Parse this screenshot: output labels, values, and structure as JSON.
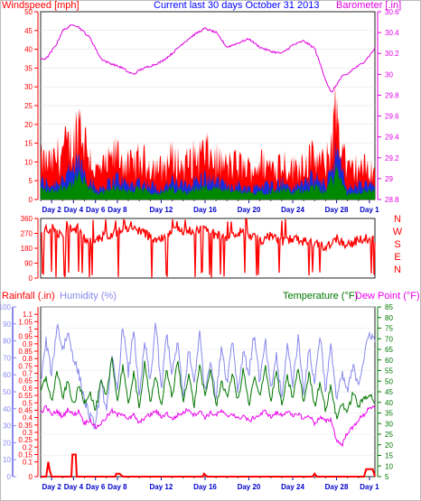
{
  "colors": {
    "wind": "#ff0000",
    "gust": "#ff0000",
    "avgwind": "#1a2bd9",
    "wind_base": "#008800",
    "barometer": "#e000e0",
    "direction": "#ff0000",
    "rain": "#ff0000",
    "humidity": "#8888ee",
    "temperature": "#007700",
    "dewpoint": "#ee00ee",
    "day_tick": "#0000cc"
  },
  "chart_data": [
    {
      "type": "area",
      "title": "Current last 30 days October 31 2013",
      "ylabel_left": "Windspeed [mph]",
      "ylabel_right": "Barometer [.in]",
      "ylim_left": [
        0,
        50
      ],
      "ylim_right": [
        28.8,
        30.6
      ],
      "yticks_left": [
        "0",
        "5",
        "10",
        "15",
        "20",
        "25",
        "30",
        "35",
        "40",
        "45",
        "50"
      ],
      "yticks_right": [
        "28.8",
        "29",
        "29.2",
        "29.4",
        "29.6",
        "29.8",
        "30",
        "30.2",
        "30.4",
        "30.6"
      ],
      "xtick_labels": [
        "Day 2",
        "Day 4",
        "Day 6",
        "Day 8",
        "Day 12",
        "Day 16",
        "Day 20",
        "Day 24",
        "Day 28",
        "Day 1"
      ],
      "xtick_days": [
        2,
        4,
        6,
        8,
        12,
        16,
        20,
        24,
        28,
        31
      ],
      "x_range_days": [
        1,
        31.5
      ],
      "series": [
        {
          "name": "Windspeed",
          "kind": "gust_max",
          "days": [
            1,
            2,
            3,
            4,
            4.5,
            5,
            6,
            7,
            8,
            9,
            10,
            11,
            12,
            13,
            14,
            15,
            16,
            17,
            18,
            19,
            20,
            21,
            22,
            23,
            24,
            25,
            26,
            27,
            27.5,
            28,
            28.5,
            29,
            30,
            31
          ],
          "values": [
            14,
            13,
            18,
            20,
            30,
            22,
            10,
            12,
            17,
            12,
            14,
            13,
            11,
            15,
            12,
            15,
            17,
            14,
            12,
            13,
            11,
            13,
            12,
            14,
            11,
            14,
            15,
            12,
            21,
            33,
            20,
            10,
            12,
            11
          ]
        },
        {
          "name": "Average",
          "kind": "avg",
          "days": [
            1,
            2,
            3,
            4,
            4.5,
            5,
            6,
            7,
            8,
            9,
            10,
            11,
            12,
            13,
            14,
            15,
            16,
            17,
            18,
            19,
            20,
            21,
            22,
            23,
            24,
            25,
            26,
            27,
            27.5,
            28,
            28.5,
            29,
            30,
            31
          ],
          "values": [
            5,
            4,
            6,
            8,
            11,
            8,
            3,
            4,
            6,
            4,
            5,
            4,
            3,
            5,
            4,
            5,
            6,
            5,
            4,
            4,
            3,
            4,
            4,
            5,
            3,
            5,
            6,
            4,
            9,
            14,
            8,
            3,
            4,
            4
          ]
        },
        {
          "name": "Barometer",
          "axis": "right",
          "days": [
            1,
            1.5,
            2,
            2.5,
            3,
            3.5,
            4,
            4.5,
            5,
            5.5,
            6,
            6.5,
            7,
            7.5,
            8,
            8.5,
            9,
            9.5,
            10,
            11,
            12,
            13,
            14,
            15,
            16,
            17,
            18,
            19,
            20,
            21,
            22,
            23,
            24,
            25,
            26,
            27,
            27.5,
            28,
            28.5,
            29,
            29.5,
            30,
            30.5,
            31,
            31.5
          ],
          "values": [
            30.15,
            30.15,
            30.22,
            30.3,
            30.42,
            30.45,
            30.48,
            30.45,
            30.4,
            30.35,
            30.25,
            30.15,
            30.12,
            30.1,
            30.08,
            30.06,
            30.02,
            30.0,
            30.04,
            30.08,
            30.12,
            30.2,
            30.3,
            30.38,
            30.44,
            30.4,
            30.26,
            30.3,
            30.34,
            30.26,
            30.22,
            30.2,
            30.28,
            30.32,
            30.25,
            29.95,
            29.82,
            29.9,
            29.98,
            30.0,
            30.05,
            30.08,
            30.12,
            30.18,
            30.25
          ]
        }
      ]
    },
    {
      "type": "line",
      "ylabel_right": "N W S E N",
      "right_labels": [
        "N",
        "W",
        "S",
        "E",
        "N"
      ],
      "ylim": [
        0,
        360
      ],
      "yticks": [
        "0",
        "90",
        "180",
        "270",
        "360"
      ],
      "xtick_labels": [],
      "series": [
        {
          "name": "Wind direction",
          "days": [
            1,
            2,
            3,
            3.5,
            4,
            4.5,
            5,
            6,
            7,
            8,
            9,
            10,
            11,
            12,
            13,
            14,
            15,
            16,
            17,
            18,
            19,
            20,
            21,
            22,
            23,
            24,
            25,
            26,
            27,
            28,
            29,
            30,
            31
          ],
          "values": [
            280,
            300,
            250,
            300,
            290,
            300,
            240,
            220,
            260,
            280,
            300,
            290,
            250,
            230,
            300,
            280,
            290,
            300,
            260,
            240,
            280,
            260,
            230,
            250,
            210,
            240,
            220,
            200,
            190,
            240,
            200,
            230,
            240
          ]
        }
      ]
    },
    {
      "type": "line",
      "ylabel_left_1": "Rainfall (.in)",
      "ylabel_left_2": "Humidity (%)",
      "ylabel_right_1": "Temperature (°F)",
      "ylabel_right_2": "Dew Point (°F)",
      "ylim_rain": [
        0,
        1.1
      ],
      "ylim_humidity": [
        0,
        100
      ],
      "ylim_temp": [
        5,
        85
      ],
      "yticks_rain": [
        "0",
        "0.1",
        "0.15",
        "0.2",
        "0.25",
        "0.3",
        "0.35",
        "0.4",
        "0.45",
        "0.5",
        "0.55",
        "0.6",
        "0.65",
        "0.7",
        "0.75",
        "0.8",
        "0.85",
        "0.9",
        "0.95",
        "1",
        "1.05",
        "1.1"
      ],
      "yticks_humidity": [
        "0",
        "10",
        "20",
        "30",
        "40",
        "50",
        "60",
        "70",
        "80",
        "90",
        "100"
      ],
      "yticks_temp": [
        "5",
        "10",
        "15",
        "20",
        "25",
        "30",
        "35",
        "40",
        "45",
        "50",
        "55",
        "60",
        "65",
        "70",
        "75",
        "80",
        "85"
      ],
      "xtick_labels": [
        "Day 2",
        "Day 4",
        "Day 6",
        "Day 8",
        "Day 12",
        "Day 16",
        "Day 20",
        "Day 24",
        "Day 28",
        "Day 1"
      ],
      "series": [
        {
          "name": "Humidity",
          "axis": "humidity",
          "days": [
            1,
            1.5,
            2,
            2.5,
            3,
            3.5,
            4,
            4.5,
            5,
            5.5,
            6,
            6.5,
            7,
            7.5,
            8,
            8.5,
            9,
            9.5,
            10,
            10.5,
            11,
            11.5,
            12,
            12.5,
            13,
            13.5,
            14,
            14.5,
            15,
            15.5,
            16,
            16.5,
            17,
            17.5,
            18,
            18.5,
            19,
            19.5,
            20,
            20.5,
            21,
            21.5,
            22,
            22.5,
            23,
            23.5,
            24,
            24.5,
            25,
            25.5,
            26,
            26.5,
            27,
            27.5,
            28,
            28.5,
            29,
            29.5,
            30,
            30.5,
            31,
            31.5
          ],
          "values": [
            55,
            80,
            60,
            90,
            75,
            85,
            70,
            60,
            45,
            35,
            30,
            55,
            40,
            70,
            50,
            90,
            60,
            88,
            45,
            80,
            55,
            92,
            50,
            85,
            60,
            80,
            45,
            75,
            55,
            85,
            50,
            70,
            45,
            78,
            55,
            82,
            50,
            75,
            60,
            85,
            55,
            80,
            50,
            72,
            45,
            78,
            55,
            82,
            50,
            75,
            55,
            85,
            50,
            78,
            45,
            60,
            50,
            65,
            55,
            70,
            85,
            80
          ]
        },
        {
          "name": "Temperature",
          "axis": "temp",
          "days": [
            1,
            1.5,
            2,
            2.5,
            3,
            3.5,
            4,
            4.5,
            5,
            5.5,
            6,
            6.5,
            7,
            7.5,
            8,
            8.5,
            9,
            9.5,
            10,
            10.5,
            11,
            11.5,
            12,
            12.5,
            13,
            13.5,
            14,
            14.5,
            15,
            15.5,
            16,
            16.5,
            17,
            17.5,
            18,
            18.5,
            19,
            19.5,
            20,
            20.5,
            21,
            21.5,
            22,
            22.5,
            23,
            23.5,
            24,
            24.5,
            25,
            25.5,
            26,
            26.5,
            27,
            27.5,
            28,
            28.5,
            29,
            29.5,
            30,
            30.5,
            31,
            31.5
          ],
          "values": [
            45,
            52,
            40,
            55,
            42,
            50,
            38,
            48,
            40,
            45,
            36,
            50,
            42,
            62,
            40,
            58,
            38,
            55,
            36,
            60,
            40,
            52,
            38,
            56,
            42,
            60,
            40,
            54,
            38,
            58,
            42,
            56,
            38,
            50,
            42,
            54,
            40,
            56,
            38,
            52,
            42,
            58,
            40,
            55,
            38,
            52,
            42,
            56,
            40,
            54,
            38,
            50,
            36,
            48,
            32,
            40,
            35,
            45,
            38,
            42,
            44,
            40
          ]
        },
        {
          "name": "Dew Point",
          "axis": "temp",
          "days": [
            1,
            1.5,
            2,
            2.5,
            3,
            3.5,
            4,
            4.5,
            5,
            5.5,
            6,
            6.5,
            7,
            7.5,
            8,
            8.5,
            9,
            9.5,
            10,
            10.5,
            11,
            11.5,
            12,
            12.5,
            13,
            13.5,
            14,
            14.5,
            15,
            15.5,
            16,
            16.5,
            17,
            17.5,
            18,
            18.5,
            19,
            19.5,
            20,
            20.5,
            21,
            21.5,
            22,
            22.5,
            23,
            23.5,
            24,
            24.5,
            25,
            25.5,
            26,
            26.5,
            27,
            27.5,
            28,
            28.5,
            29,
            29.5,
            30,
            30.5,
            31,
            31.5
          ],
          "values": [
            35,
            38,
            34,
            36,
            33,
            37,
            34,
            36,
            30,
            32,
            28,
            30,
            33,
            36,
            34,
            35,
            32,
            34,
            30,
            33,
            34,
            36,
            33,
            35,
            32,
            34,
            35,
            37,
            34,
            36,
            33,
            35,
            34,
            36,
            33,
            35,
            32,
            34,
            31,
            33,
            34,
            36,
            33,
            35,
            34,
            36,
            33,
            35,
            32,
            34,
            30,
            33,
            31,
            32,
            22,
            20,
            26,
            28,
            32,
            34,
            38,
            37
          ]
        },
        {
          "name": "Rainfall",
          "axis": "rain",
          "days": [
            1,
            1.5,
            1.6,
            1.7,
            1.8,
            2.0,
            2.5,
            3.8,
            3.9,
            4.0,
            4.2,
            4.3,
            5,
            7.8,
            7.9,
            8.2,
            8.5,
            9,
            15.8,
            15.9,
            16.2,
            17,
            25.8,
            26,
            26.2,
            27,
            30.5,
            30.7,
            31,
            31.3,
            31.5
          ],
          "values": [
            0,
            0,
            0.05,
            0.1,
            0.05,
            0,
            0,
            0,
            0.15,
            0.15,
            0.15,
            0,
            0,
            0,
            0.02,
            0.02,
            0,
            0,
            0,
            0.02,
            0,
            0,
            0,
            0.02,
            0,
            0,
            0,
            0.05,
            0.05,
            0.05,
            0
          ]
        }
      ]
    }
  ]
}
